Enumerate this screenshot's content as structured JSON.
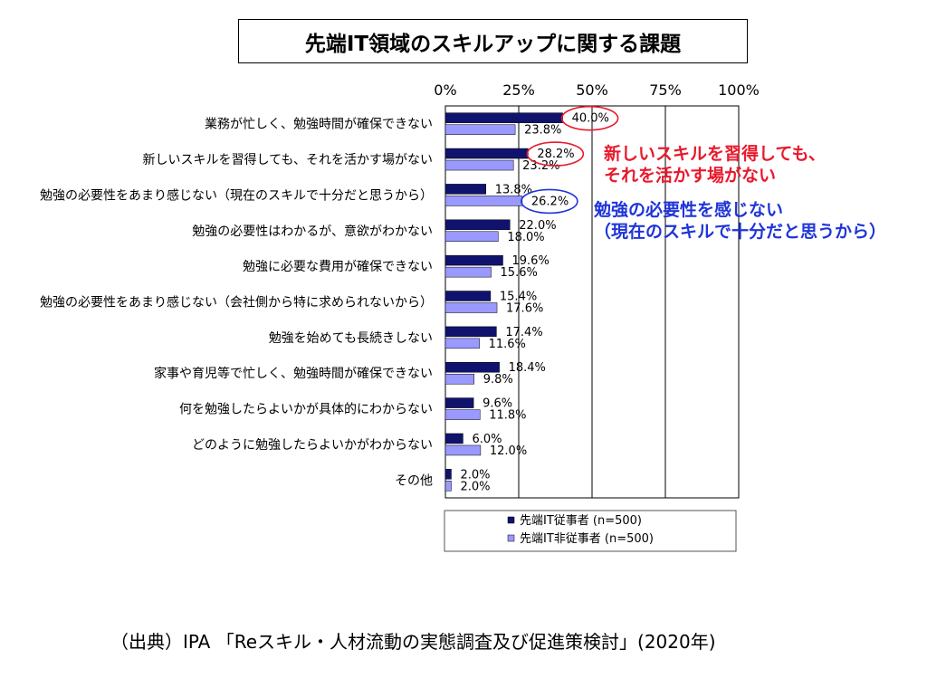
{
  "chart_data": {
    "type": "bar",
    "orientation": "horizontal",
    "title": "先端IT領域のスキルアップに関する課題",
    "xlim": [
      0,
      100
    ],
    "xticks": [
      "0%",
      "25%",
      "50%",
      "75%",
      "100%"
    ],
    "categories": [
      "業務が忙しく、勉強時間が確保できない",
      "新しいスキルを習得しても、それを活かす場がない",
      "勉強の必要性をあまり感じない（現在のスキルで十分だと思うから）",
      "勉強の必要性はわかるが、意欲がわかない",
      "勉強に必要な費用が確保できない",
      "勉強の必要性をあまり感じない（会社側から特に求められないから）",
      "勉強を始めても長続きしない",
      "家事や育児等で忙しく、勉強時間が確保できない",
      "何を勉強したらよいかが具体的にわからない",
      "どのように勉強したらよいかがわからない",
      "その他"
    ],
    "series": [
      {
        "name": "先端IT従事者 (n=500)",
        "color": "#10136e",
        "values": [
          40.0,
          28.2,
          13.8,
          22.0,
          19.6,
          15.4,
          17.4,
          18.4,
          9.6,
          6.0,
          2.0
        ],
        "labels": [
          "40.0%",
          "28.2%",
          "13.8%",
          "22.0%",
          "19.6%",
          "15.4%",
          "17.4%",
          "18.4%",
          "9.6%",
          "6.0%",
          "2.0%"
        ]
      },
      {
        "name": "先端IT非従事者 (n=500)",
        "color": "#9999ff",
        "values": [
          23.8,
          23.2,
          26.2,
          18.0,
          15.6,
          17.6,
          11.6,
          9.8,
          11.8,
          12.0,
          2.0
        ],
        "labels": [
          "23.8%",
          "23.2%",
          "26.2%",
          "18.0%",
          "15.6%",
          "17.6%",
          "11.6%",
          "9.8%",
          "11.8%",
          "12.0%",
          "2.0%"
        ]
      }
    ],
    "grid": true,
    "legend": "bottom",
    "highlights": [
      {
        "series": 0,
        "index": 0,
        "color": "#e8192c"
      },
      {
        "series": 0,
        "index": 1,
        "color": "#e8192c"
      },
      {
        "series": 1,
        "index": 2,
        "color": "#1f35d8"
      }
    ]
  },
  "callouts": {
    "red_line1": "新しいスキルを習得しても、",
    "red_line2": "それを活かす場がない",
    "blue_line1": "勉強の必要性を感じない",
    "blue_line2": "（現在のスキルで十分だと思うから）"
  },
  "source": "（出典）IPA 「Reスキル・人材流動の実態調査及び促進策検討」(2020年)"
}
